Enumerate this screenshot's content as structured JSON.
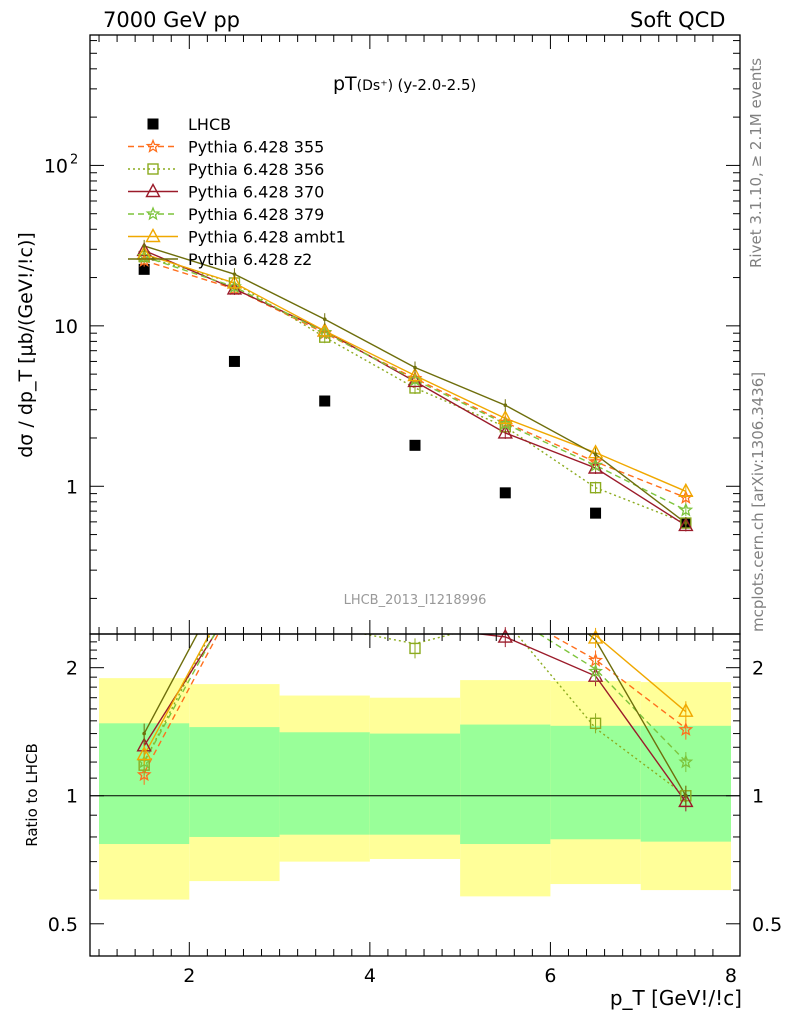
{
  "header": {
    "left": "7000 GeV pp",
    "right": "Soft QCD"
  },
  "side_labels": {
    "rivet": "Rivet 3.1.10, ≥ 2.1M events",
    "mcplots": "mcplots.cern.ch [arXiv:1306.3436]"
  },
  "chart_data": [
    {
      "type": "scatter",
      "title_main": "pT",
      "title_sub": "(Ds⁺)",
      "title_tail": "(y-2.0-2.5)",
      "ylabel": "dσ / dp_T [μb/(GeV!/!c)]",
      "xlabel": "p_T [GeV!/!c]",
      "yscale": "log",
      "xlim": [
        0.9,
        8.1
      ],
      "ylim": [
        0.12,
        650
      ],
      "y_ticks": [
        "1",
        "10",
        "10²"
      ],
      "watermark": "LHCB_2013_I1218996",
      "legend_position": "top-left",
      "series": [
        {
          "name": "LHCB",
          "color": "#000000",
          "style": "data",
          "x": [
            1.5,
            2.5,
            3.5,
            4.5,
            5.5,
            6.5,
            7.5
          ],
          "y": [
            22.5,
            6.0,
            3.4,
            1.8,
            0.91,
            0.68,
            0.59
          ]
        },
        {
          "name": "Pythia 6.428 355",
          "color": "#ff6f1c",
          "marker": "star",
          "dash": "6,4",
          "x": [
            1.5,
            2.5,
            3.5,
            4.5,
            5.5,
            6.5,
            7.5
          ],
          "y": [
            25.5,
            17.0,
            9.0,
            4.7,
            2.5,
            1.42,
            0.85
          ]
        },
        {
          "name": "Pythia 6.428 356",
          "color": "#8cab1f",
          "marker": "square",
          "dash": "2,3",
          "x": [
            1.5,
            2.5,
            3.5,
            4.5,
            5.5,
            6.5,
            7.5
          ],
          "y": [
            27.0,
            18.5,
            8.5,
            4.1,
            2.35,
            0.98,
            0.59
          ]
        },
        {
          "name": "Pythia 6.428 370",
          "color": "#9b1b2a",
          "marker": "triangle",
          "dash": "",
          "x": [
            1.5,
            2.5,
            3.5,
            4.5,
            5.5,
            6.5,
            7.5
          ],
          "y": [
            29.5,
            17.0,
            9.3,
            4.5,
            2.15,
            1.3,
            0.57
          ]
        },
        {
          "name": "Pythia 6.428 379",
          "color": "#7dc43c",
          "marker": "star",
          "dash": "6,4",
          "x": [
            1.5,
            2.5,
            3.5,
            4.5,
            5.5,
            6.5,
            7.5
          ],
          "y": [
            27.0,
            17.5,
            9.1,
            4.6,
            2.45,
            1.35,
            0.71
          ]
        },
        {
          "name": "Pythia 6.428 ambt1",
          "color": "#f0a800",
          "marker": "triangle",
          "dash": "",
          "x": [
            1.5,
            2.5,
            3.5,
            4.5,
            5.5,
            6.5,
            7.5
          ],
          "y": [
            28.0,
            18.5,
            9.3,
            4.9,
            2.65,
            1.62,
            0.93
          ]
        },
        {
          "name": "Pythia 6.428 z2",
          "color": "#6e6e0c",
          "marker": "dot",
          "dash": "",
          "x": [
            1.5,
            2.5,
            3.5,
            4.5,
            5.5,
            6.5,
            7.5
          ],
          "y": [
            31.5,
            21.0,
            11.0,
            5.5,
            3.2,
            1.58,
            0.59
          ]
        }
      ]
    },
    {
      "type": "scatter",
      "ylabel": "Ratio to LHCB",
      "xlabel": "p_T [GeV!/!c]",
      "yscale": "log",
      "xlim": [
        0.9,
        8.1
      ],
      "ylim": [
        0.42,
        2.4
      ],
      "y_ticks": [
        "0.5",
        "1",
        "2"
      ],
      "x_ticks": [
        "2",
        "4",
        "6",
        "8"
      ],
      "band_edges": [
        1.0,
        2.0,
        3.0,
        4.0,
        5.0,
        6.0,
        7.0,
        8.0
      ],
      "band_outer_lo": [
        0.57,
        0.63,
        0.7,
        0.71,
        0.58,
        0.62,
        0.6
      ],
      "band_outer_hi": [
        1.89,
        1.83,
        1.72,
        1.7,
        1.87,
        1.86,
        1.85
      ],
      "band_inner_lo": [
        0.77,
        0.8,
        0.81,
        0.81,
        0.77,
        0.79,
        0.78
      ],
      "band_inner_hi": [
        1.48,
        1.45,
        1.41,
        1.4,
        1.47,
        1.46,
        1.46
      ],
      "series": [
        {
          "name": "Pythia 6.428 355",
          "x": [
            1.5,
            6.5,
            7.5
          ],
          "y": [
            1.12,
            2.08,
            1.43
          ]
        },
        {
          "name": "Pythia 6.428 356",
          "x": [
            1.5,
            4.5,
            6.5,
            7.5
          ],
          "y": [
            1.18,
            2.22,
            1.48,
            1.0
          ]
        },
        {
          "name": "Pythia 6.428 370",
          "x": [
            1.5,
            5.5,
            6.5,
            7.5
          ],
          "y": [
            1.31,
            2.36,
            1.91,
            0.97
          ]
        },
        {
          "name": "Pythia 6.428 379",
          "x": [
            1.5,
            6.5,
            7.5
          ],
          "y": [
            1.2,
            1.96,
            1.2
          ]
        },
        {
          "name": "Pythia 6.428 ambt1",
          "x": [
            1.5,
            6.5,
            7.5
          ],
          "y": [
            1.25,
            2.35,
            1.58
          ]
        },
        {
          "name": "Pythia 6.428 z2",
          "x": [
            1.5,
            7.5
          ],
          "y": [
            1.4,
            1.0
          ]
        }
      ]
    }
  ]
}
